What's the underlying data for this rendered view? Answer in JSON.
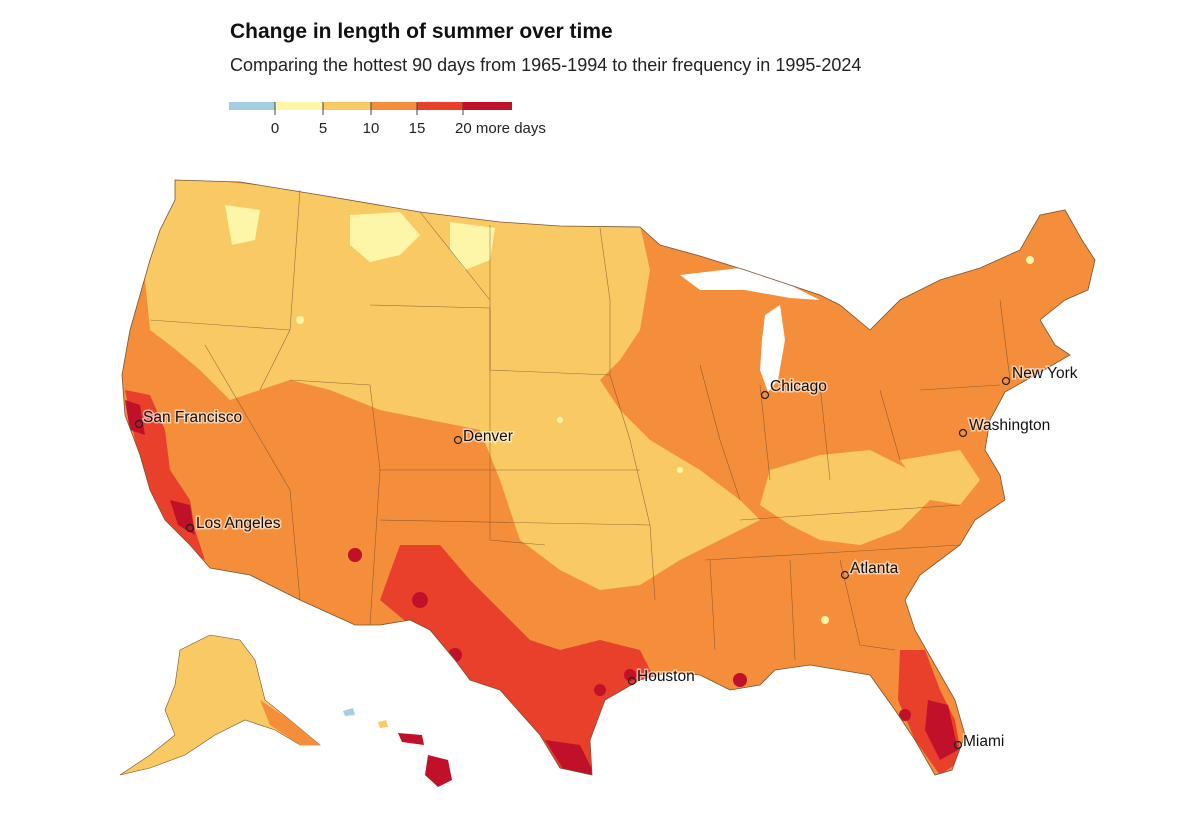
{
  "header": {
    "title": "Change in length of summer over time",
    "subtitle": "Comparing the hottest 90 days from 1965-1994 to their frequency in 1995-2024"
  },
  "legend": {
    "bins": [
      {
        "from": null,
        "to": 0,
        "color": "#a6cde6"
      },
      {
        "from": 0,
        "to": 5,
        "color": "#fdf6a8"
      },
      {
        "from": 5,
        "to": 10,
        "color": "#f9c964"
      },
      {
        "from": 10,
        "to": 15,
        "color": "#f48e3a"
      },
      {
        "from": 15,
        "to": 20,
        "color": "#e8402a"
      },
      {
        "from": 20,
        "to": null,
        "color": "#c0102a"
      }
    ],
    "tick_labels": [
      "0",
      "5",
      "10",
      "15",
      "20 more days"
    ]
  },
  "cities": [
    {
      "name": "New York",
      "id": "new-york"
    },
    {
      "name": "Chicago",
      "id": "chicago"
    },
    {
      "name": "Washington",
      "id": "washington"
    },
    {
      "name": "San Francisco",
      "id": "san-francisco"
    },
    {
      "name": "Denver",
      "id": "denver"
    },
    {
      "name": "Los Angeles",
      "id": "los-angeles"
    },
    {
      "name": "Atlanta",
      "id": "atlanta"
    },
    {
      "name": "Houston",
      "id": "houston"
    },
    {
      "name": "Miami",
      "id": "miami"
    }
  ],
  "colors": {
    "negative": "#a6cde6",
    "bin_0_5": "#fdf6a8",
    "bin_5_10": "#f9c964",
    "bin_10_15": "#f48e3a",
    "bin_15_20": "#e8402a",
    "bin_20_plus": "#c0102a",
    "state_border": "#6b4a2a"
  }
}
